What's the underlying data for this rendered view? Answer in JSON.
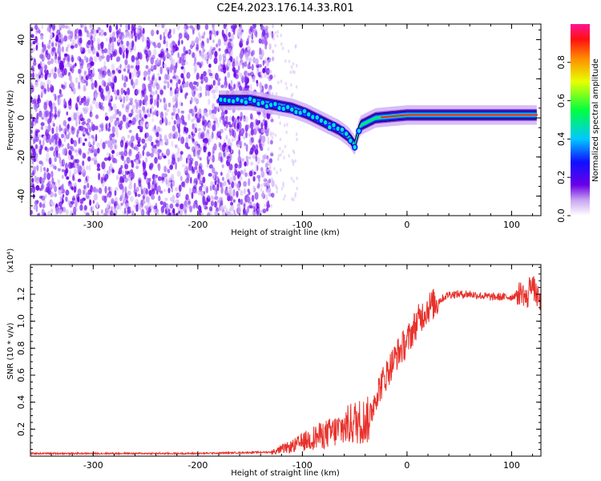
{
  "title": "C2E4.2023.176.14.33.R01",
  "chart_data": [
    {
      "type": "heatmap",
      "name": "spectrogram",
      "xlabel": "Height of straight line (km)",
      "ylabel": "Frequency (Hz)",
      "xlim": [
        -360,
        128
      ],
      "ylim": [
        -50,
        48
      ],
      "x_ticks": [
        -300,
        -200,
        -100,
        0,
        100
      ],
      "x_tick_labels": [
        "-300",
        "-200",
        "-100",
        "0",
        "100"
      ],
      "y_ticks": [
        -40,
        -20,
        0,
        20,
        40
      ],
      "y_tick_labels": [
        "-40",
        "-20",
        "0",
        "20",
        "40"
      ],
      "ridge": [
        {
          "x": -180,
          "y": 9
        },
        {
          "x": -150,
          "y": 9
        },
        {
          "x": -130,
          "y": 7
        },
        {
          "x": -110,
          "y": 5
        },
        {
          "x": -95,
          "y": 2
        },
        {
          "x": -80,
          "y": -2
        },
        {
          "x": -65,
          "y": -6
        },
        {
          "x": -55,
          "y": -10
        },
        {
          "x": -50,
          "y": -14
        },
        {
          "x": -45,
          "y": -4
        },
        {
          "x": -30,
          "y": 0
        },
        {
          "x": -10,
          "y": 1
        },
        {
          "x": 0,
          "y": 1.5
        },
        {
          "x": 50,
          "y": 1.5
        },
        {
          "x": 100,
          "y": 1.5
        },
        {
          "x": 125,
          "y": 1.5
        }
      ],
      "colorbar": {
        "label": "Normalized spectral amplitude",
        "ticks": [
          0.0,
          0.2,
          0.4,
          0.6,
          0.8
        ],
        "tick_labels": [
          "0.0",
          "0.2",
          "0.4",
          "0.6",
          "0.8"
        ],
        "range": [
          0,
          1
        ]
      }
    },
    {
      "type": "line",
      "name": "snr",
      "xlabel": "Height of straight line (km)",
      "ylabel": "SNR (10 * v/v)",
      "exponent_label": "(x10⁴)",
      "xlim": [
        -360,
        128
      ],
      "ylim": [
        0,
        1.42
      ],
      "x_ticks": [
        -300,
        -200,
        -100,
        0,
        100
      ],
      "x_tick_labels": [
        "-300",
        "-200",
        "-100",
        "0",
        "100"
      ],
      "y_ticks": [
        0.2,
        0.4,
        0.6,
        0.8,
        1.0,
        1.2
      ],
      "y_tick_labels": [
        "0.2",
        "0.4",
        "0.6",
        "0.8",
        "1.0",
        "1.2"
      ],
      "color": "#e8302a",
      "series": [
        {
          "name": "SNR",
          "x": [
            -360,
            -300,
            -200,
            -130,
            -110,
            -90,
            -70,
            -50,
            -35,
            -30,
            -20,
            -10,
            0,
            10,
            20,
            30,
            40,
            60,
            80,
            100,
            110,
            115,
            118,
            128
          ],
          "y": [
            0.02,
            0.02,
            0.02,
            0.03,
            0.08,
            0.15,
            0.2,
            0.28,
            0.3,
            0.45,
            0.6,
            0.75,
            0.85,
            1.0,
            1.1,
            1.15,
            1.2,
            1.2,
            1.18,
            1.18,
            1.22,
            1.15,
            1.3,
            1.12
          ]
        }
      ]
    }
  ]
}
